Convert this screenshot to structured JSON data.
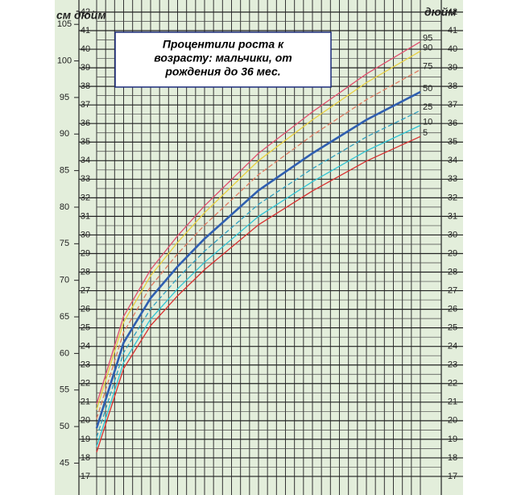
{
  "chart_data": {
    "type": "line",
    "title": [
      "Процентили роста к",
      "возрасту: мальчики, от",
      "рождения до 36 мес."
    ],
    "left_unit_label": "см",
    "left_inch_label": "дюйм",
    "right_unit_label": "дюйм",
    "x": [
      0,
      3,
      6,
      9,
      12,
      18,
      24,
      30,
      36
    ],
    "xlim": [
      0,
      36
    ],
    "xticks": [
      0,
      1,
      2,
      3,
      4,
      5,
      6,
      7,
      8,
      9,
      10,
      11,
      12,
      13,
      14,
      15,
      16,
      17,
      18,
      19,
      20,
      21,
      22,
      23,
      24,
      25,
      26,
      27,
      28,
      29,
      30,
      31,
      32,
      33,
      34,
      35,
      36
    ],
    "ylim": [
      16,
      42.65
    ],
    "yticks": [
      17,
      18,
      19,
      20,
      21,
      22,
      23,
      24,
      25,
      26,
      27,
      28,
      29,
      30,
      31,
      32,
      33,
      34,
      35,
      36,
      37,
      38,
      39,
      40,
      41,
      42
    ],
    "y2lim": [
      40.64,
      108.33
    ],
    "y2ticks": [
      45,
      50,
      55,
      60,
      65,
      70,
      75,
      80,
      85,
      90,
      95,
      100,
      105
    ],
    "grid": true,
    "series": [
      {
        "name": "95",
        "color": "#e0506e",
        "dashed": false,
        "values": [
          20.9,
          25.62,
          28.13,
          29.95,
          31.57,
          34.4,
          36.63,
          38.67,
          40.4
        ]
      },
      {
        "name": "90",
        "color": "#e8d040",
        "dashed": false,
        "values": [
          20.6,
          25.3,
          27.8,
          29.6,
          31.2,
          34.0,
          36.2,
          38.2,
          39.9
        ]
      },
      {
        "name": "75",
        "color": "#e07a60",
        "dashed": true,
        "values": [
          20.1,
          24.76,
          27.22,
          28.98,
          30.53,
          33.25,
          35.37,
          37.28,
          38.9
        ]
      },
      {
        "name": "50",
        "color": "#2f5fb0",
        "dashed": false,
        "values": [
          19.6,
          24.2,
          26.6,
          28.3,
          29.8,
          32.4,
          34.4,
          36.2,
          37.7
        ]
      },
      {
        "name": "25",
        "color": "#2f9fc0",
        "dashed": true,
        "values": [
          19.1,
          23.66,
          26.02,
          27.67,
          29.13,
          31.65,
          33.57,
          35.28,
          36.7
        ]
      },
      {
        "name": "10",
        "color": "#30c4d4",
        "dashed": false,
        "values": [
          18.6,
          23.13,
          25.47,
          27.1,
          28.53,
          31.0,
          32.87,
          34.53,
          35.9
        ]
      },
      {
        "name": "5",
        "color": "#d83030",
        "dashed": false,
        "values": [
          18.3,
          22.81,
          25.12,
          26.72,
          28.13,
          30.55,
          32.37,
          33.98,
          35.3
        ]
      }
    ]
  }
}
